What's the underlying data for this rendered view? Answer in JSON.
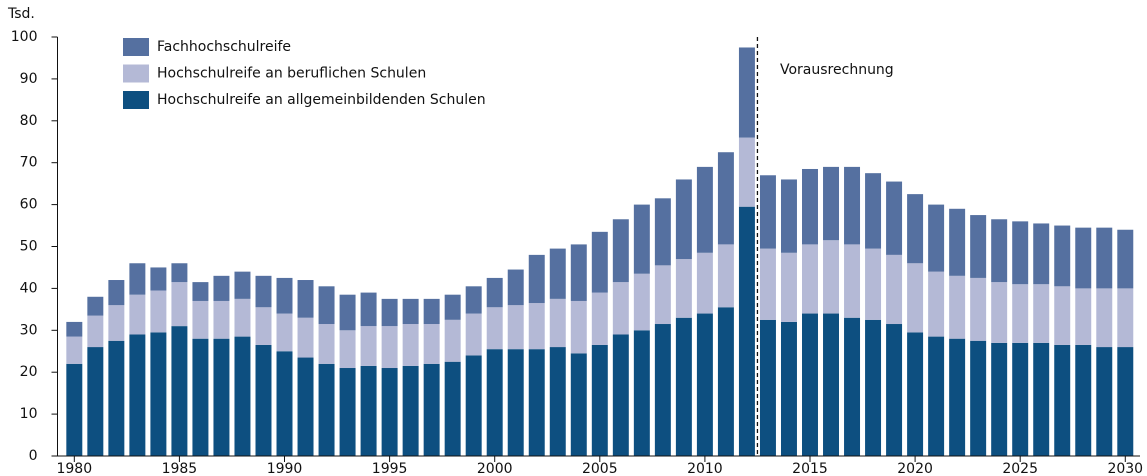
{
  "chart_data": {
    "type": "stacked_bar",
    "y_unit_label": "Tsd.",
    "annotation": "Vorausrechnung",
    "divider_x": 2012.5,
    "x": [
      1980,
      1981,
      1982,
      1983,
      1984,
      1985,
      1986,
      1987,
      1988,
      1989,
      1990,
      1991,
      1992,
      1993,
      1994,
      1995,
      1996,
      1997,
      1998,
      1999,
      2000,
      2001,
      2002,
      2003,
      2004,
      2005,
      2006,
      2007,
      2008,
      2009,
      2010,
      2011,
      2012,
      2013,
      2014,
      2015,
      2016,
      2017,
      2018,
      2019,
      2020,
      2021,
      2022,
      2023,
      2024,
      2025,
      2026,
      2027,
      2028,
      2029,
      2030
    ],
    "xlim": [
      1979.2,
      2030.7
    ],
    "xticks": [
      1980,
      1985,
      1990,
      1995,
      2000,
      2005,
      2010,
      2015,
      2020,
      2025,
      2030
    ],
    "ylim": [
      0,
      100
    ],
    "yticks": [
      0,
      10,
      20,
      30,
      40,
      50,
      60,
      70,
      80,
      90,
      100
    ],
    "grid": false,
    "legend": "top-left",
    "series": [
      {
        "name": "Hochschulreife an allgemeinbildenden Schulen",
        "color": "#0d4f80",
        "values": [
          22,
          26,
          27.5,
          29,
          29.5,
          31,
          28,
          28,
          28.5,
          26.5,
          25,
          23.5,
          22,
          21,
          21.5,
          21,
          21.5,
          22,
          22.5,
          24,
          25.5,
          25.5,
          25.5,
          26,
          24.5,
          26.5,
          29,
          30,
          31.5,
          33,
          34,
          35.5,
          59.5,
          32.5,
          32,
          34,
          34,
          33,
          32.5,
          31.5,
          29.5,
          28.5,
          28,
          27.5,
          27,
          27,
          27,
          26.5,
          26.5,
          26,
          26
        ]
      },
      {
        "name": "Hochschulreife an beruflichen Schulen",
        "color": "#b4b9d6",
        "values": [
          6.5,
          7.5,
          8.5,
          9.5,
          10,
          10.5,
          9,
          9,
          9,
          9,
          9,
          9.5,
          9.5,
          9,
          9.5,
          10,
          10,
          9.5,
          10,
          10,
          10,
          10.5,
          11,
          11.5,
          12.5,
          12.5,
          12.5,
          13.5,
          14,
          14,
          14.5,
          15,
          16.5,
          17,
          16.5,
          16.5,
          17.5,
          17.5,
          17,
          16.5,
          16.5,
          15.5,
          15,
          15,
          14.5,
          14,
          14,
          14,
          13.5,
          14,
          14
        ]
      },
      {
        "name": "Fachhochschulreife",
        "color": "#5570a0",
        "values": [
          3.5,
          4.5,
          6,
          7.5,
          5.5,
          4.5,
          4.5,
          6,
          6.5,
          7.5,
          8.5,
          9,
          9,
          8.5,
          8,
          6.5,
          6,
          6,
          6,
          6.5,
          7,
          8.5,
          11.5,
          12,
          13.5,
          14.5,
          15,
          16.5,
          16,
          19,
          20.5,
          22,
          21.5,
          17.5,
          17.5,
          18,
          17.5,
          18.5,
          18,
          17.5,
          16.5,
          16,
          16,
          15,
          15,
          15,
          14.5,
          14.5,
          14.5,
          14.5,
          14
        ]
      }
    ]
  }
}
